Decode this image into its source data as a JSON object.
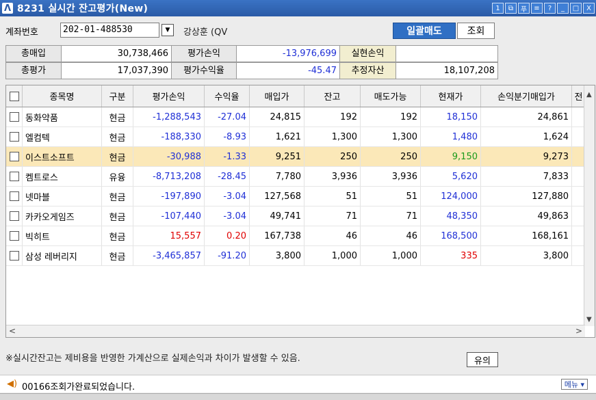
{
  "window": {
    "code": "8231",
    "title": "실시간 잔고평가(New)",
    "logo_glyph": "Λ",
    "buttons": [
      "1",
      "⧉",
      "푸",
      "≡",
      "?",
      "_",
      "□",
      "X"
    ]
  },
  "account": {
    "label": "계좌번호",
    "number": "202-01-488530",
    "dropdown_glyph": "▼",
    "owner": "강상훈 (QV"
  },
  "actions": {
    "sell_all": "일괄매도",
    "query": "조회"
  },
  "summary": {
    "total_buy_label": "총매입",
    "total_buy": "30,738,466",
    "eval_pl_label": "평가손익",
    "eval_pl": "-13,976,699",
    "realized_label": "실현손익",
    "realized": "",
    "total_eval_label": "총평가",
    "total_eval": "17,037,390",
    "eval_rate_label": "평가수익율",
    "eval_rate": "-45.47",
    "est_asset_label": "추정자산",
    "est_asset": "18,107,208"
  },
  "table": {
    "headers": [
      "",
      "종목명",
      "구분",
      "평가손익",
      "수익율",
      "매입가",
      "잔고",
      "매도가능",
      "현재가",
      "손익분기매입가",
      "전"
    ],
    "rows": [
      {
        "name": "동화약품",
        "type": "현금",
        "pl": "-1,288,543",
        "rate": "-27.04",
        "buy": "24,815",
        "qty": "192",
        "sellable": "192",
        "price": "18,150",
        "be": "24,861",
        "pl_color": "blue",
        "price_color": "blue"
      },
      {
        "name": "엘컴텍",
        "type": "현금",
        "pl": "-188,330",
        "rate": "-8.93",
        "buy": "1,621",
        "qty": "1,300",
        "sellable": "1,300",
        "price": "1,480",
        "be": "1,624",
        "pl_color": "blue",
        "price_color": "blue"
      },
      {
        "name": "이스트소프트",
        "type": "현금",
        "pl": "-30,988",
        "rate": "-1.33",
        "buy": "9,251",
        "qty": "250",
        "sellable": "250",
        "price": "9,150",
        "be": "9,273",
        "pl_color": "blue",
        "price_color": "green",
        "selected": true
      },
      {
        "name": "켐트로스",
        "type": "유융",
        "pl": "-8,713,208",
        "rate": "-28.45",
        "buy": "7,780",
        "qty": "3,936",
        "sellable": "3,936",
        "price": "5,620",
        "be": "7,833",
        "pl_color": "blue",
        "price_color": "blue"
      },
      {
        "name": "넷마블",
        "type": "현금",
        "pl": "-197,890",
        "rate": "-3.04",
        "buy": "127,568",
        "qty": "51",
        "sellable": "51",
        "price": "124,000",
        "be": "127,880",
        "pl_color": "blue",
        "price_color": "blue"
      },
      {
        "name": "카카오게임즈",
        "type": "현금",
        "pl": "-107,440",
        "rate": "-3.04",
        "buy": "49,741",
        "qty": "71",
        "sellable": "71",
        "price": "48,350",
        "be": "49,863",
        "pl_color": "blue",
        "price_color": "blue"
      },
      {
        "name": "빅히트",
        "type": "현금",
        "pl": "15,557",
        "rate": "0.20",
        "buy": "167,738",
        "qty": "46",
        "sellable": "46",
        "price": "168,500",
        "be": "168,161",
        "pl_color": "red",
        "price_color": "blue"
      },
      {
        "name": "삼성 레버리지",
        "type": "현금",
        "pl": "-3,465,857",
        "rate": "-91.20",
        "buy": "3,800",
        "qty": "1,000",
        "sellable": "1,000",
        "price": "335",
        "be": "3,800",
        "pl_color": "blue",
        "price_color": "red"
      }
    ]
  },
  "notice": {
    "text": "※실시간잔고는 제비용을 반영한 가계산으로 실제손익과 차이가 발생할 수 있음.",
    "button": "유의"
  },
  "status": {
    "message": "00166조회가완료되었습니다.",
    "menu": "메뉴 ▾",
    "speaker_glyph": "◀)"
  },
  "colors": {
    "title_bar": "#2a5aa6",
    "sell_button": "#2f6fc4",
    "negative": "#1f2fd6",
    "positive": "#e00000",
    "selected_row": "#fbe8b8"
  }
}
